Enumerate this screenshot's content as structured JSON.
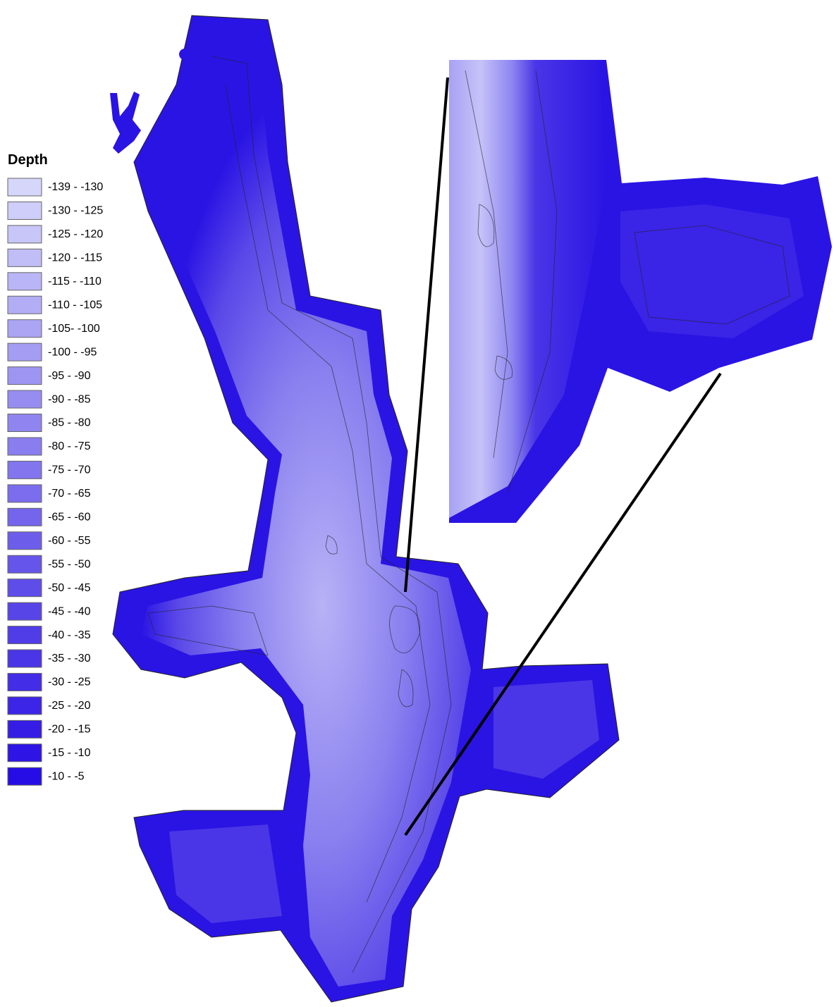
{
  "legend": {
    "title": "Depth",
    "items": [
      {
        "label": "-139 - -130",
        "color": "#d6d6fa"
      },
      {
        "label": "-130 - -125",
        "color": "#cfcdf9"
      },
      {
        "label": "-125 - -120",
        "color": "#c8c5f8"
      },
      {
        "label": "-120 - -115",
        "color": "#c1bdf7"
      },
      {
        "label": "-115 - -110",
        "color": "#bab5f6"
      },
      {
        "label": "-110 - -105",
        "color": "#b3adf5"
      },
      {
        "label": "-105- -100",
        "color": "#aca5f4"
      },
      {
        "label": "-100 - -95",
        "color": "#a59df3"
      },
      {
        "label": "-95 - -90",
        "color": "#9e95f2"
      },
      {
        "label": "-90 - -85",
        "color": "#978df1"
      },
      {
        "label": "-85 - -80",
        "color": "#9085f0"
      },
      {
        "label": "-80 - -75",
        "color": "#897def"
      },
      {
        "label": "-75 - -70",
        "color": "#8275ee"
      },
      {
        "label": "-70 - -65",
        "color": "#7b6ded"
      },
      {
        "label": "-65 - -60",
        "color": "#7465ec"
      },
      {
        "label": "-60 - -55",
        "color": "#6d5deb"
      },
      {
        "label": "-55 - -50",
        "color": "#6655ea"
      },
      {
        "label": "-50 - -45",
        "color": "#5f4de9"
      },
      {
        "label": "-45 - -40",
        "color": "#5845e8"
      },
      {
        "label": "-40 - -35",
        "color": "#513de8"
      },
      {
        "label": "-35 - -30",
        "color": "#4a35e7"
      },
      {
        "label": "-30 - -25",
        "color": "#432de7"
      },
      {
        "label": "-25 - -20",
        "color": "#3c25e6"
      },
      {
        "label": "-20 - -15",
        "color": "#351de6"
      },
      {
        "label": "-15 - -10",
        "color": "#2e15e5"
      },
      {
        "label": "-10 - -5",
        "color": "#270de5"
      }
    ]
  }
}
